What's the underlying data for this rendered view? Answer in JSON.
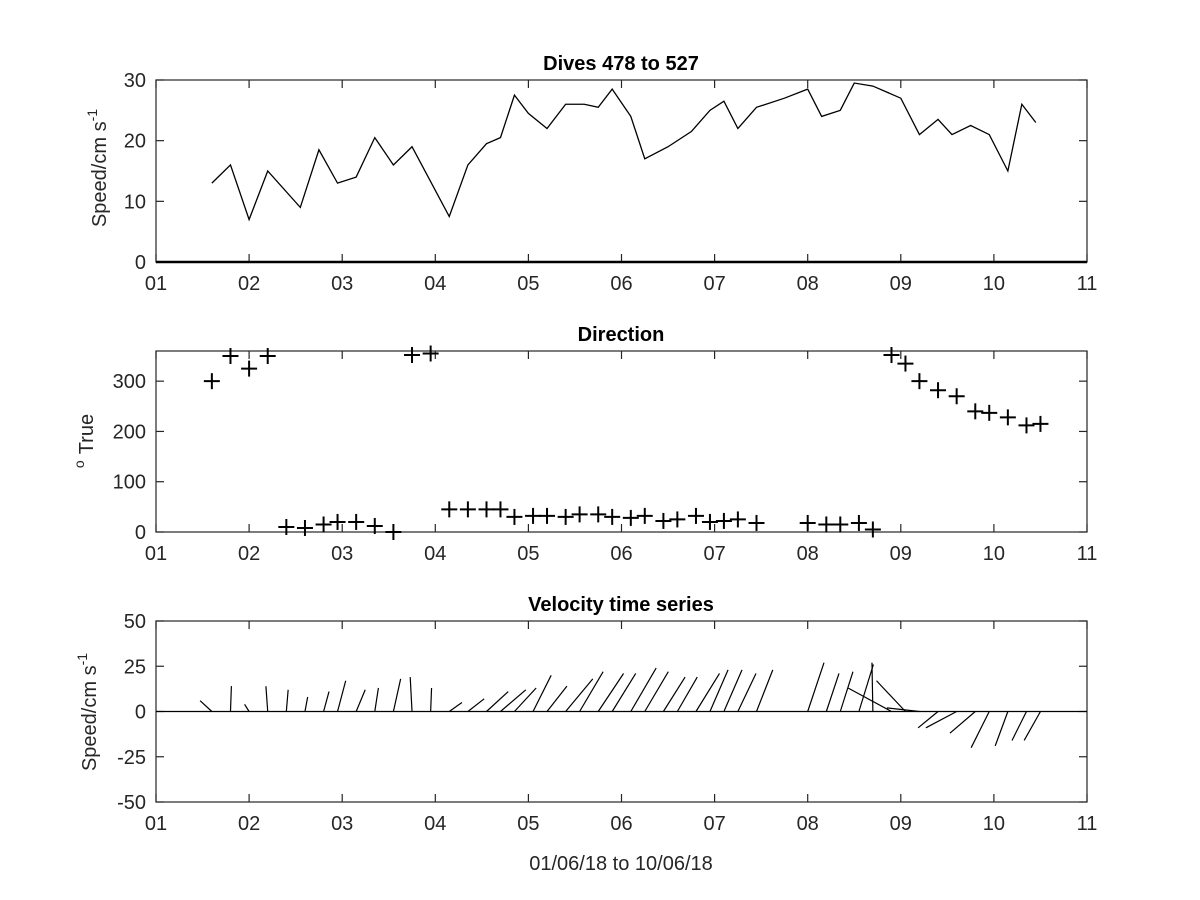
{
  "chart_data": [
    {
      "type": "line",
      "title": "Dives 478 to 527",
      "ylabel_main": "Speed/cm s",
      "ylabel_exp": "-1",
      "xlim": [
        1,
        11
      ],
      "ylim": [
        0,
        30
      ],
      "xticks": [
        "01",
        "02",
        "03",
        "04",
        "05",
        "06",
        "07",
        "08",
        "09",
        "10",
        "11"
      ],
      "yticks": [
        0,
        10,
        20,
        30
      ],
      "x": [
        1.6,
        1.8,
        2.0,
        2.2,
        2.55,
        2.75,
        2.95,
        3.15,
        3.35,
        3.55,
        3.75,
        4.15,
        4.35,
        4.55,
        4.7,
        4.85,
        5.0,
        5.2,
        5.4,
        5.6,
        5.75,
        5.9,
        6.1,
        6.25,
        6.5,
        6.75,
        6.95,
        7.1,
        7.25,
        7.45,
        7.75,
        8.0,
        8.15,
        8.35,
        8.5,
        8.7,
        9.0,
        9.2,
        9.4,
        9.55,
        9.75,
        9.95,
        10.15,
        10.3,
        10.45
      ],
      "values": [
        13,
        16,
        7,
        15,
        9,
        18.5,
        13,
        14,
        20.5,
        16,
        19,
        7.5,
        16,
        19.5,
        20.5,
        27.5,
        24.5,
        22,
        26,
        26,
        25.5,
        28.5,
        24,
        17,
        19,
        21.5,
        25,
        26.5,
        22,
        25.5,
        27,
        28.5,
        24,
        25,
        29.5,
        29,
        27,
        21,
        23.5,
        21,
        22.5,
        21,
        15,
        26,
        23
      ]
    },
    {
      "type": "scatter",
      "title": "Direction",
      "ylabel_main": "True",
      "ylabel_exp": "o",
      "xlim": [
        1,
        11
      ],
      "ylim": [
        0,
        360
      ],
      "xticks": [
        "01",
        "02",
        "03",
        "04",
        "05",
        "06",
        "07",
        "08",
        "09",
        "10",
        "11"
      ],
      "yticks": [
        0,
        100,
        200,
        300
      ],
      "x": [
        1.6,
        1.8,
        2.0,
        2.2,
        2.4,
        2.6,
        2.8,
        2.95,
        3.15,
        3.35,
        3.55,
        3.75,
        3.95,
        4.15,
        4.35,
        4.55,
        4.7,
        4.85,
        5.05,
        5.2,
        5.4,
        5.55,
        5.75,
        5.9,
        6.1,
        6.25,
        6.45,
        6.6,
        6.8,
        6.95,
        7.1,
        7.25,
        7.45,
        8.0,
        8.2,
        8.35,
        8.55,
        8.7,
        8.9,
        9.05,
        9.2,
        9.4,
        9.6,
        9.8,
        9.95,
        10.15,
        10.35,
        10.5
      ],
      "values": [
        300,
        350,
        325,
        350,
        10,
        8,
        15,
        20,
        20,
        12,
        0,
        352,
        355,
        45,
        45,
        45,
        45,
        30,
        32,
        32,
        30,
        35,
        35,
        30,
        28,
        32,
        22,
        25,
        32,
        20,
        22,
        25,
        18,
        18,
        15,
        15,
        18,
        5,
        352,
        335,
        300,
        282,
        270,
        240,
        237,
        228,
        212,
        215
      ]
    },
    {
      "type": "quiver",
      "title": "Velocity time series",
      "ylabel_main": "Speed/cm s",
      "ylabel_exp": "-1",
      "xlabel": "01/06/18 to 10/06/18",
      "xlim": [
        1,
        11
      ],
      "ylim": [
        -50,
        50
      ],
      "xticks": [
        "01",
        "02",
        "03",
        "04",
        "05",
        "06",
        "07",
        "08",
        "09",
        "10",
        "11"
      ],
      "yticks": [
        "50",
        "25",
        "0",
        "-25",
        "-50"
      ],
      "vectors": [
        {
          "x": 1.6,
          "u": -6.5,
          "v": 6
        },
        {
          "x": 1.8,
          "u": 0.5,
          "v": 14
        },
        {
          "x": 2.0,
          "u": -2.5,
          "v": 4
        },
        {
          "x": 2.2,
          "u": -1,
          "v": 14
        },
        {
          "x": 2.4,
          "u": 1,
          "v": 12
        },
        {
          "x": 2.6,
          "u": 1.5,
          "v": 8
        },
        {
          "x": 2.8,
          "u": 3,
          "v": 11
        },
        {
          "x": 2.95,
          "u": 4.5,
          "v": 17
        },
        {
          "x": 3.15,
          "u": 5,
          "v": 12
        },
        {
          "x": 3.35,
          "u": 2,
          "v": 13
        },
        {
          "x": 3.55,
          "u": 4,
          "v": 18
        },
        {
          "x": 3.75,
          "u": -1,
          "v": 19
        },
        {
          "x": 3.95,
          "u": 0.5,
          "v": 13
        },
        {
          "x": 4.15,
          "u": 7,
          "v": 5
        },
        {
          "x": 4.35,
          "u": 9,
          "v": 7
        },
        {
          "x": 4.55,
          "u": 12,
          "v": 11
        },
        {
          "x": 4.7,
          "u": 14,
          "v": 12
        },
        {
          "x": 4.85,
          "u": 12,
          "v": 13
        },
        {
          "x": 5.05,
          "u": 10,
          "v": 20
        },
        {
          "x": 5.2,
          "u": 11,
          "v": 14
        },
        {
          "x": 5.4,
          "u": 15,
          "v": 18
        },
        {
          "x": 5.55,
          "u": 13,
          "v": 22
        },
        {
          "x": 5.75,
          "u": 14,
          "v": 21
        },
        {
          "x": 5.9,
          "u": 13,
          "v": 21
        },
        {
          "x": 6.1,
          "u": 14,
          "v": 24
        },
        {
          "x": 6.25,
          "u": 13,
          "v": 22
        },
        {
          "x": 6.45,
          "u": 12,
          "v": 19
        },
        {
          "x": 6.6,
          "u": 11,
          "v": 19
        },
        {
          "x": 6.8,
          "u": 13,
          "v": 21
        },
        {
          "x": 6.95,
          "u": 10,
          "v": 23
        },
        {
          "x": 7.1,
          "u": 10,
          "v": 23
        },
        {
          "x": 7.25,
          "u": 10,
          "v": 21
        },
        {
          "x": 7.45,
          "u": 9,
          "v": 23
        },
        {
          "x": 8.0,
          "u": 9,
          "v": 27
        },
        {
          "x": 8.2,
          "u": 7,
          "v": 21
        },
        {
          "x": 8.35,
          "u": 7,
          "v": 22
        },
        {
          "x": 8.55,
          "u": 8,
          "v": 26
        },
        {
          "x": 8.7,
          "u": -0.5,
          "v": 27
        },
        {
          "x": 8.9,
          "u": -24,
          "v": 13
        },
        {
          "x": 9.05,
          "u": -16,
          "v": 17
        },
        {
          "x": 9.2,
          "u": -18,
          "v": 2
        },
        {
          "x": 9.4,
          "u": -11,
          "v": -9
        },
        {
          "x": 9.6,
          "u": -17,
          "v": -9
        },
        {
          "x": 9.8,
          "u": -14,
          "v": -12
        },
        {
          "x": 9.95,
          "u": -10,
          "v": -20
        },
        {
          "x": 10.15,
          "u": -7,
          "v": -19
        },
        {
          "x": 10.35,
          "u": -8,
          "v": -16
        },
        {
          "x": 10.5,
          "u": -9,
          "v": -16
        }
      ]
    }
  ]
}
